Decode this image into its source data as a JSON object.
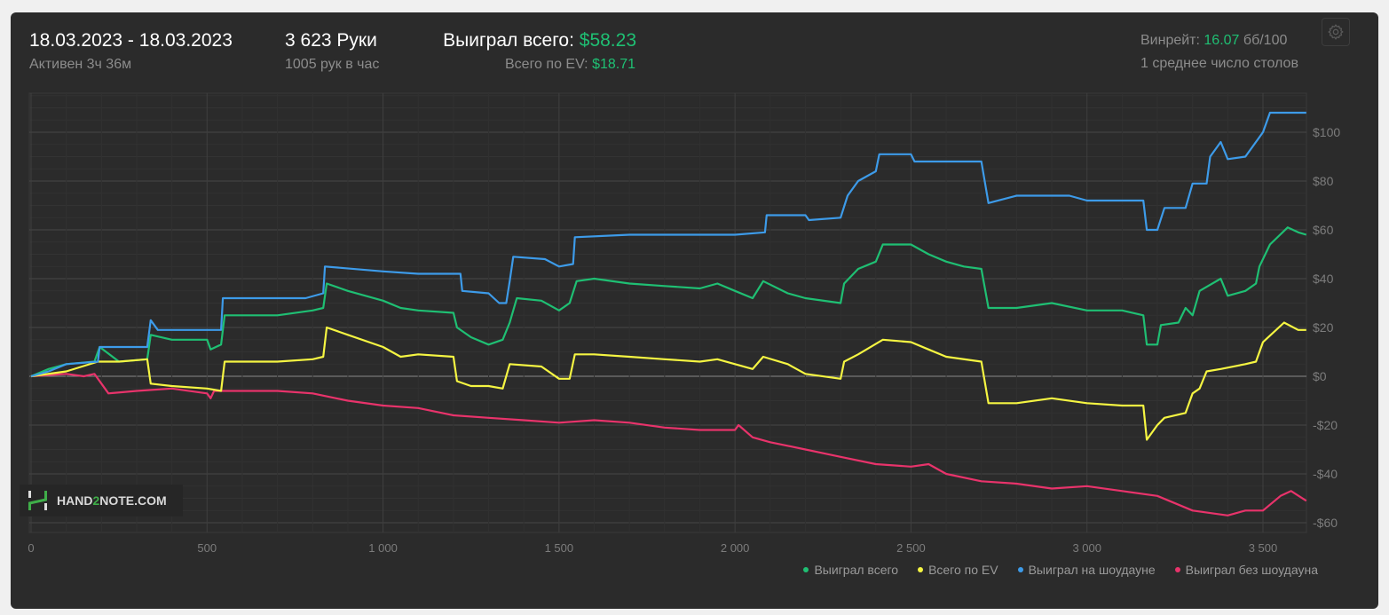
{
  "header": {
    "date_range": "18.03.2023 - 18.03.2023",
    "active_time": "Активен 3ч 36м",
    "hands": "3 623 Руки",
    "hands_per_hour": "1005 рук в час",
    "won_total_label": "Выиграл всего:",
    "won_total_value": "$58.23",
    "ev_label": "Всего по EV:",
    "ev_value": "$18.71",
    "winrate_label": "Винрейт:",
    "winrate_value": "16.07",
    "winrate_unit": "бб/100",
    "avg_tables": "1 среднее число столов"
  },
  "logo": {
    "text_a": "HAND",
    "text_b": "2",
    "text_c": "NOTE.COM"
  },
  "colors": {
    "green": "#1fbf73",
    "yellow": "#f5f542",
    "blue": "#3d9be9",
    "red": "#e8336b"
  },
  "chart_data": {
    "type": "line",
    "xlabel": "",
    "ylabel": "",
    "xlim": [
      0,
      3623
    ],
    "ylim": [
      -64,
      116
    ],
    "x_ticks": [
      0,
      500,
      1000,
      1500,
      2000,
      2500,
      3000,
      3500
    ],
    "x_tick_labels": [
      "0",
      "500",
      "1 000",
      "1 500",
      "2 000",
      "2 500",
      "3 000",
      "3 500"
    ],
    "y_ticks": [
      100,
      80,
      60,
      40,
      20,
      0,
      -20,
      -40,
      -60
    ],
    "y_tick_labels": [
      "$100",
      "$80",
      "$60",
      "$40",
      "$20",
      "$0",
      "-$20",
      "-$40",
      "-$60"
    ],
    "grid": true,
    "legend_position": "bottom-right",
    "series": [
      {
        "name": "Выиграл всего",
        "color": "#1fbf73",
        "points": [
          [
            0,
            0
          ],
          [
            50,
            3
          ],
          [
            100,
            5
          ],
          [
            180,
            6
          ],
          [
            195,
            12
          ],
          [
            250,
            6
          ],
          [
            330,
            7
          ],
          [
            340,
            17
          ],
          [
            400,
            15
          ],
          [
            500,
            15
          ],
          [
            510,
            11
          ],
          [
            540,
            13
          ],
          [
            550,
            25
          ],
          [
            700,
            25
          ],
          [
            800,
            27
          ],
          [
            830,
            28
          ],
          [
            840,
            38
          ],
          [
            900,
            35
          ],
          [
            1000,
            31
          ],
          [
            1050,
            28
          ],
          [
            1100,
            27
          ],
          [
            1200,
            26
          ],
          [
            1210,
            20
          ],
          [
            1250,
            16
          ],
          [
            1300,
            13
          ],
          [
            1340,
            15
          ],
          [
            1360,
            22
          ],
          [
            1380,
            32
          ],
          [
            1450,
            31
          ],
          [
            1500,
            27
          ],
          [
            1530,
            30
          ],
          [
            1550,
            39
          ],
          [
            1600,
            40
          ],
          [
            1700,
            38
          ],
          [
            1800,
            37
          ],
          [
            1900,
            36
          ],
          [
            1950,
            38
          ],
          [
            2000,
            35
          ],
          [
            2050,
            32
          ],
          [
            2080,
            39
          ],
          [
            2150,
            34
          ],
          [
            2200,
            32
          ],
          [
            2300,
            30
          ],
          [
            2310,
            38
          ],
          [
            2350,
            44
          ],
          [
            2400,
            47
          ],
          [
            2420,
            54
          ],
          [
            2500,
            54
          ],
          [
            2550,
            50
          ],
          [
            2600,
            47
          ],
          [
            2650,
            45
          ],
          [
            2700,
            44
          ],
          [
            2720,
            28
          ],
          [
            2800,
            28
          ],
          [
            2900,
            30
          ],
          [
            3000,
            27
          ],
          [
            3100,
            27
          ],
          [
            3160,
            25
          ],
          [
            3170,
            13
          ],
          [
            3200,
            13
          ],
          [
            3210,
            21
          ],
          [
            3260,
            22
          ],
          [
            3280,
            28
          ],
          [
            3300,
            25
          ],
          [
            3320,
            35
          ],
          [
            3380,
            40
          ],
          [
            3400,
            33
          ],
          [
            3450,
            35
          ],
          [
            3480,
            38
          ],
          [
            3490,
            45
          ],
          [
            3520,
            54
          ],
          [
            3570,
            61
          ],
          [
            3600,
            59
          ],
          [
            3623,
            58
          ]
        ]
      },
      {
        "name": "Всего по EV",
        "color": "#f5f542",
        "points": [
          [
            0,
            0
          ],
          [
            100,
            2
          ],
          [
            190,
            6
          ],
          [
            250,
            6
          ],
          [
            330,
            7
          ],
          [
            340,
            -3
          ],
          [
            400,
            -4
          ],
          [
            500,
            -5
          ],
          [
            540,
            -6
          ],
          [
            550,
            6
          ],
          [
            700,
            6
          ],
          [
            800,
            7
          ],
          [
            830,
            8
          ],
          [
            840,
            20
          ],
          [
            900,
            17
          ],
          [
            1000,
            12
          ],
          [
            1050,
            8
          ],
          [
            1100,
            9
          ],
          [
            1200,
            8
          ],
          [
            1210,
            -2
          ],
          [
            1250,
            -4
          ],
          [
            1300,
            -4
          ],
          [
            1340,
            -5
          ],
          [
            1360,
            5
          ],
          [
            1450,
            4
          ],
          [
            1500,
            -1
          ],
          [
            1530,
            -1
          ],
          [
            1545,
            9
          ],
          [
            1600,
            9
          ],
          [
            1700,
            8
          ],
          [
            1800,
            7
          ],
          [
            1900,
            6
          ],
          [
            1950,
            7
          ],
          [
            2000,
            5
          ],
          [
            2050,
            3
          ],
          [
            2080,
            8
          ],
          [
            2150,
            5
          ],
          [
            2200,
            1
          ],
          [
            2300,
            -1
          ],
          [
            2310,
            6
          ],
          [
            2350,
            9
          ],
          [
            2420,
            15
          ],
          [
            2500,
            14
          ],
          [
            2550,
            11
          ],
          [
            2600,
            8
          ],
          [
            2700,
            6
          ],
          [
            2720,
            -11
          ],
          [
            2800,
            -11
          ],
          [
            2900,
            -9
          ],
          [
            3000,
            -11
          ],
          [
            3100,
            -12
          ],
          [
            3160,
            -12
          ],
          [
            3170,
            -26
          ],
          [
            3200,
            -20
          ],
          [
            3220,
            -17
          ],
          [
            3280,
            -15
          ],
          [
            3300,
            -7
          ],
          [
            3320,
            -5
          ],
          [
            3340,
            2
          ],
          [
            3380,
            3
          ],
          [
            3450,
            5
          ],
          [
            3480,
            6
          ],
          [
            3500,
            14
          ],
          [
            3560,
            22
          ],
          [
            3600,
            19
          ],
          [
            3623,
            19
          ]
        ]
      },
      {
        "name": "Выиграл на шоудауне",
        "color": "#3d9be9",
        "points": [
          [
            0,
            0
          ],
          [
            50,
            2
          ],
          [
            100,
            5
          ],
          [
            190,
            6
          ],
          [
            195,
            12
          ],
          [
            330,
            12
          ],
          [
            340,
            23
          ],
          [
            360,
            19
          ],
          [
            540,
            19
          ],
          [
            545,
            32
          ],
          [
            780,
            32
          ],
          [
            830,
            34
          ],
          [
            835,
            45
          ],
          [
            1000,
            43
          ],
          [
            1100,
            42
          ],
          [
            1220,
            42
          ],
          [
            1225,
            35
          ],
          [
            1300,
            34
          ],
          [
            1330,
            30
          ],
          [
            1350,
            30
          ],
          [
            1360,
            39
          ],
          [
            1370,
            49
          ],
          [
            1460,
            48
          ],
          [
            1500,
            45
          ],
          [
            1540,
            46
          ],
          [
            1545,
            57
          ],
          [
            1700,
            58
          ],
          [
            1850,
            58
          ],
          [
            2000,
            58
          ],
          [
            2085,
            59
          ],
          [
            2090,
            66
          ],
          [
            2200,
            66
          ],
          [
            2210,
            64
          ],
          [
            2300,
            65
          ],
          [
            2320,
            74
          ],
          [
            2350,
            80
          ],
          [
            2400,
            84
          ],
          [
            2410,
            91
          ],
          [
            2500,
            91
          ],
          [
            2510,
            88
          ],
          [
            2700,
            88
          ],
          [
            2720,
            71
          ],
          [
            2800,
            74
          ],
          [
            2950,
            74
          ],
          [
            3000,
            72
          ],
          [
            3160,
            72
          ],
          [
            3170,
            60
          ],
          [
            3200,
            60
          ],
          [
            3220,
            69
          ],
          [
            3280,
            69
          ],
          [
            3300,
            79
          ],
          [
            3340,
            79
          ],
          [
            3350,
            90
          ],
          [
            3380,
            96
          ],
          [
            3400,
            89
          ],
          [
            3450,
            90
          ],
          [
            3500,
            100
          ],
          [
            3520,
            108
          ],
          [
            3623,
            108
          ]
        ]
      },
      {
        "name": "Выиграл без шоудауна",
        "color": "#e8336b",
        "points": [
          [
            0,
            0
          ],
          [
            100,
            1
          ],
          [
            150,
            0
          ],
          [
            180,
            1
          ],
          [
            200,
            -3
          ],
          [
            220,
            -7
          ],
          [
            300,
            -6
          ],
          [
            400,
            -5
          ],
          [
            500,
            -7
          ],
          [
            510,
            -9
          ],
          [
            520,
            -6
          ],
          [
            700,
            -6
          ],
          [
            800,
            -7
          ],
          [
            900,
            -10
          ],
          [
            1000,
            -12
          ],
          [
            1100,
            -13
          ],
          [
            1200,
            -16
          ],
          [
            1300,
            -17
          ],
          [
            1400,
            -18
          ],
          [
            1500,
            -19
          ],
          [
            1600,
            -18
          ],
          [
            1700,
            -19
          ],
          [
            1800,
            -21
          ],
          [
            1900,
            -22
          ],
          [
            2000,
            -22
          ],
          [
            2010,
            -20
          ],
          [
            2050,
            -25
          ],
          [
            2100,
            -27
          ],
          [
            2200,
            -30
          ],
          [
            2300,
            -33
          ],
          [
            2400,
            -36
          ],
          [
            2500,
            -37
          ],
          [
            2550,
            -36
          ],
          [
            2600,
            -40
          ],
          [
            2700,
            -43
          ],
          [
            2800,
            -44
          ],
          [
            2900,
            -46
          ],
          [
            3000,
            -45
          ],
          [
            3100,
            -47
          ],
          [
            3200,
            -49
          ],
          [
            3300,
            -55
          ],
          [
            3400,
            -57
          ],
          [
            3450,
            -55
          ],
          [
            3500,
            -55
          ],
          [
            3550,
            -49
          ],
          [
            3580,
            -47
          ],
          [
            3623,
            -51
          ]
        ]
      }
    ]
  }
}
